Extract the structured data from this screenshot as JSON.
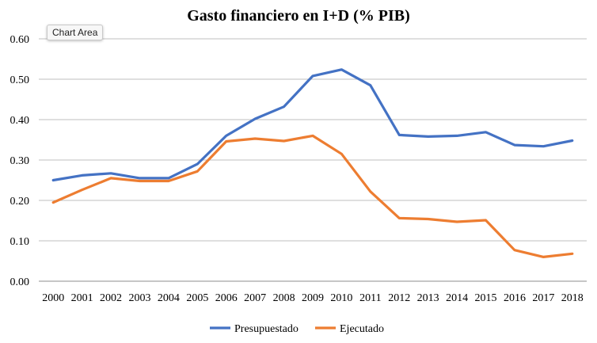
{
  "tooltip": {
    "text": "Chart Area"
  },
  "chart_data": {
    "type": "line",
    "title": "Gasto financiero en I+D (% PIB)",
    "xlabel": "",
    "ylabel": "",
    "ylim": [
      0,
      0.6
    ],
    "yticks": [
      "0.00",
      "0.10",
      "0.20",
      "0.30",
      "0.40",
      "0.50",
      "0.60"
    ],
    "categories": [
      "2000",
      "2001",
      "2002",
      "2003",
      "2004",
      "2005",
      "2006",
      "2007",
      "2008",
      "2009",
      "2010",
      "2011",
      "2012",
      "2013",
      "2014",
      "2015",
      "2016",
      "2017",
      "2018"
    ],
    "grid": true,
    "legend_position": "bottom",
    "series": [
      {
        "name": "Presupuestado",
        "color": "#4472C4",
        "values": [
          0.25,
          0.262,
          0.267,
          0.255,
          0.255,
          0.29,
          0.36,
          0.402,
          0.432,
          0.508,
          0.524,
          0.485,
          0.362,
          0.358,
          0.36,
          0.369,
          0.337,
          0.334,
          0.348
        ]
      },
      {
        "name": "Ejecutado",
        "color": "#ED7D31",
        "values": [
          0.195,
          0.226,
          0.255,
          0.248,
          0.248,
          0.272,
          0.346,
          0.353,
          0.347,
          0.36,
          0.315,
          0.222,
          0.156,
          0.154,
          0.147,
          0.151,
          0.077,
          0.06,
          0.068
        ]
      }
    ]
  }
}
